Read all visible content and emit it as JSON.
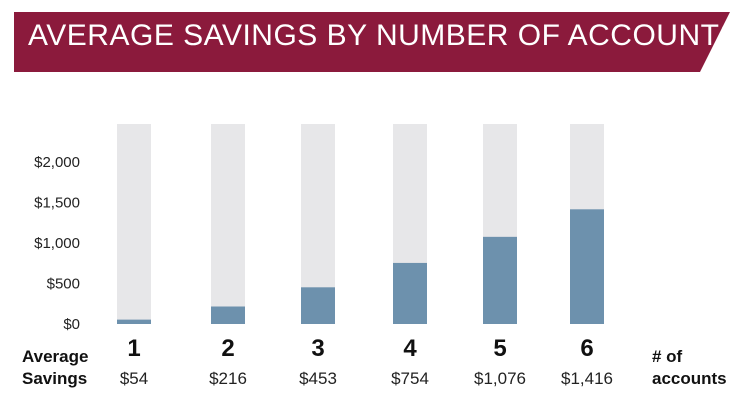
{
  "header": {
    "title": "AVERAGE SAVINGS BY NUMBER OF ACCOUNTS",
    "bg_color": "#8b1a3c"
  },
  "labels": {
    "row_label_line1": "Average",
    "row_label_line2": "Savings",
    "axis_label_line1": "# of",
    "axis_label_line2": "accounts"
  },
  "colors": {
    "bar_fill": "#6d91ad",
    "track_fill": "#e7e7e9"
  },
  "chart_data": {
    "type": "bar",
    "title": "AVERAGE SAVINGS BY NUMBER OF ACCOUNTS",
    "categories": [
      "1",
      "2",
      "3",
      "4",
      "5",
      "6"
    ],
    "values": [
      54,
      216,
      453,
      754,
      1076,
      1416
    ],
    "value_labels": [
      "$54",
      "$216",
      "$453",
      "$754",
      "$1,076",
      "$1,416"
    ],
    "yticks": [
      0,
      500,
      1000,
      1500,
      2000
    ],
    "ytick_labels": [
      "$0",
      "$500",
      "$1,000",
      "$1,500",
      "$2,000"
    ],
    "ylim": [
      0,
      2300
    ],
    "xlabel": "# of accounts",
    "ylabel": "",
    "grid": false
  }
}
